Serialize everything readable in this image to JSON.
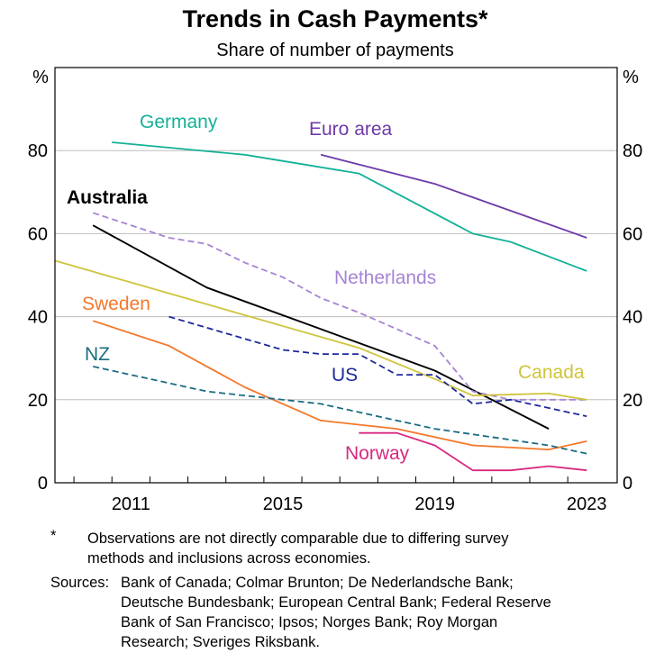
{
  "chart_data": {
    "type": "line",
    "title": "Trends in Cash Payments*",
    "subtitle": "Share of number of payments",
    "ylabel_left": "%",
    "ylabel_right": "%",
    "ylim": [
      0,
      100
    ],
    "yticks": [
      0,
      20,
      40,
      60,
      80
    ],
    "xlim": [
      2009.0,
      2023.8
    ],
    "xticks": [
      2011,
      2015,
      2019,
      2023
    ],
    "grid": true,
    "series": [
      {
        "name": "Germany",
        "color": "#14b196",
        "dash": "solid",
        "bold": false,
        "points": [
          [
            2010.5,
            82
          ],
          [
            2014,
            79
          ],
          [
            2017,
            74.5
          ],
          [
            2020,
            60
          ],
          [
            2021,
            58
          ],
          [
            2023,
            51
          ]
        ]
      },
      {
        "name": "Euro area",
        "color": "#6e3aa7",
        "dash": "solid",
        "bold": false,
        "points": [
          [
            2016,
            79
          ],
          [
            2019,
            72
          ],
          [
            2023,
            59
          ]
        ]
      },
      {
        "name": "Australia",
        "color": "#000000",
        "dash": "solid",
        "bold": true,
        "points": [
          [
            2010,
            62
          ],
          [
            2013,
            47
          ],
          [
            2016,
            37
          ],
          [
            2019,
            27
          ],
          [
            2022,
            13
          ]
        ]
      },
      {
        "name": "Netherlands",
        "color": "#a684d4",
        "dash": "dashed",
        "bold": false,
        "points": [
          [
            2010,
            65
          ],
          [
            2012,
            59
          ],
          [
            2013,
            57.5
          ],
          [
            2014,
            53
          ],
          [
            2015,
            49.5
          ],
          [
            2016,
            44.5
          ],
          [
            2017,
            41
          ],
          [
            2018,
            37
          ],
          [
            2019,
            33
          ],
          [
            2020,
            22
          ],
          [
            2021,
            20
          ],
          [
            2022,
            20
          ],
          [
            2023,
            20
          ]
        ]
      },
      {
        "name": "Canada",
        "color": "#cfc43b",
        "dash": "solid",
        "bold": false,
        "points": [
          [
            2009,
            53.5
          ],
          [
            2017,
            32.5
          ],
          [
            2019,
            25
          ],
          [
            2020,
            21
          ],
          [
            2022,
            21.5
          ],
          [
            2023,
            20
          ]
        ]
      },
      {
        "name": "Sweden",
        "color": "#f4782b",
        "dash": "solid",
        "bold": false,
        "points": [
          [
            2010,
            39
          ],
          [
            2012,
            33
          ],
          [
            2014,
            23
          ],
          [
            2016,
            15
          ],
          [
            2018,
            13
          ],
          [
            2020,
            9
          ],
          [
            2022,
            8
          ],
          [
            2023,
            10
          ]
        ]
      },
      {
        "name": "US",
        "color": "#1d2a9c",
        "dash": "dashed",
        "bold": false,
        "points": [
          [
            2012,
            40
          ],
          [
            2015,
            32
          ],
          [
            2016,
            31
          ],
          [
            2017,
            31
          ],
          [
            2018,
            26
          ],
          [
            2019,
            26
          ],
          [
            2020,
            19
          ],
          [
            2021,
            20
          ],
          [
            2022,
            18
          ],
          [
            2023,
            16
          ]
        ]
      },
      {
        "name": "NZ",
        "color": "#1a6c82",
        "dash": "dashed",
        "bold": false,
        "points": [
          [
            2010,
            28
          ],
          [
            2013,
            22
          ],
          [
            2016,
            19
          ],
          [
            2019,
            13
          ],
          [
            2022,
            9
          ],
          [
            2023,
            7
          ]
        ]
      },
      {
        "name": "Norway",
        "color": "#d8287f",
        "dash": "solid",
        "bold": false,
        "points": [
          [
            2017,
            12
          ],
          [
            2018,
            12
          ],
          [
            2019,
            9
          ],
          [
            2020,
            3
          ],
          [
            2021,
            3
          ],
          [
            2022,
            4
          ],
          [
            2023,
            3
          ]
        ]
      }
    ]
  },
  "footnote": {
    "marker": "*",
    "lines": [
      "Observations are not directly comparable due to differing survey",
      "methods and inclusions across economies."
    ]
  },
  "sources": {
    "label": "Sources:",
    "lines": [
      "Bank of Canada; Colmar Brunton; De Nederlandsche Bank;",
      "Deutsche Bundesbank; European Central Bank; Federal Reserve",
      "Bank of San Francisco; Ipsos; Norges Bank; Roy Morgan",
      "Research; Sveriges Riksbank."
    ]
  }
}
